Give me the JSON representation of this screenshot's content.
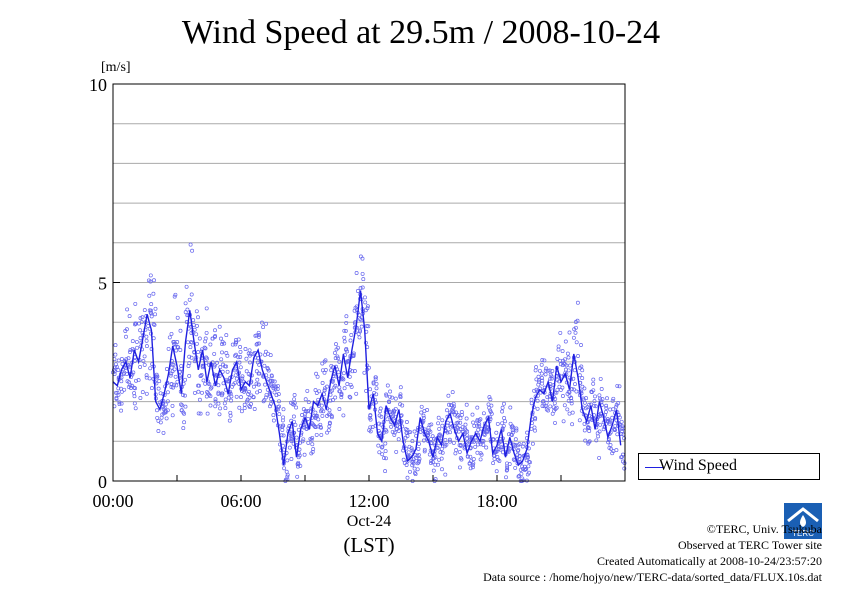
{
  "chart_data": {
    "type": "scatter",
    "title": "Wind Speed at 29.5m / 2008-10-24",
    "unit_label": "[m/s]",
    "y_range": [
      0,
      10
    ],
    "y_ticks": [
      {
        "value": 0,
        "label": "0"
      },
      {
        "value": 5,
        "label": "5"
      },
      {
        "value": 10,
        "label": "10"
      }
    ],
    "x_range_hours": [
      0,
      24
    ],
    "x_ticks": [
      {
        "hour": 0,
        "label": "00:00"
      },
      {
        "hour": 6,
        "label": "06:00"
      },
      {
        "hour": 12,
        "label": "12:00"
      },
      {
        "hour": 18,
        "label": "18:00"
      }
    ],
    "date_label": "Oct-24",
    "timezone_label": "(LST)",
    "grid_y": true,
    "legend_position": "right",
    "series": [
      {
        "name": "Wind Speed",
        "kind": "line-and-points",
        "line_color": "#2020e0",
        "point_color": "#6666ee",
        "x_hours": [
          0.0,
          0.2,
          0.4,
          0.6,
          0.8,
          1.0,
          1.2,
          1.4,
          1.6,
          1.8,
          2.0,
          2.2,
          2.4,
          2.6,
          2.8,
          3.0,
          3.2,
          3.4,
          3.6,
          3.8,
          4.0,
          4.2,
          4.4,
          4.6,
          4.8,
          5.0,
          5.2,
          5.4,
          5.6,
          5.8,
          6.0,
          6.2,
          6.4,
          6.6,
          6.8,
          7.0,
          7.2,
          7.4,
          7.6,
          7.8,
          8.0,
          8.2,
          8.4,
          8.6,
          8.8,
          9.0,
          9.2,
          9.4,
          9.6,
          9.8,
          10.0,
          10.2,
          10.4,
          10.6,
          10.8,
          11.0,
          11.2,
          11.4,
          11.6,
          11.8,
          12.0,
          12.2,
          12.4,
          12.6,
          12.8,
          13.0,
          13.2,
          13.4,
          13.6,
          13.8,
          14.0,
          14.2,
          14.4,
          14.6,
          14.8,
          15.0,
          15.2,
          15.4,
          15.6,
          15.8,
          16.0,
          16.2,
          16.4,
          16.6,
          16.8,
          17.0,
          17.2,
          17.4,
          17.6,
          17.8,
          18.0,
          18.2,
          18.4,
          18.6,
          18.8,
          19.0,
          19.2,
          19.4,
          19.6,
          19.8,
          20.0,
          20.2,
          20.4,
          20.6,
          20.8,
          21.0,
          21.2,
          21.4,
          21.6,
          21.8,
          22.0,
          22.2,
          22.4,
          22.6,
          22.8,
          23.0,
          23.2,
          23.4,
          23.6,
          23.8
        ],
        "values": [
          2.5,
          2.4,
          2.8,
          3.0,
          2.6,
          3.3,
          3.0,
          3.6,
          4.2,
          3.8,
          2.0,
          1.8,
          2.2,
          2.7,
          3.4,
          2.9,
          2.2,
          3.5,
          4.3,
          3.5,
          2.8,
          3.3,
          2.5,
          3.0,
          2.4,
          2.8,
          2.6,
          2.2,
          2.8,
          3.0,
          2.3,
          2.5,
          2.4,
          3.1,
          3.3,
          2.8,
          2.5,
          2.2,
          1.9,
          1.2,
          0.4,
          1.2,
          1.5,
          0.6,
          1.3,
          1.6,
          1.3,
          2.0,
          1.9,
          2.2,
          1.8,
          2.5,
          2.9,
          2.4,
          3.2,
          2.6,
          3.3,
          3.9,
          4.8,
          3.8,
          1.8,
          2.2,
          1.2,
          1.0,
          1.9,
          1.6,
          1.4,
          1.8,
          1.0,
          0.5,
          0.6,
          0.8,
          1.6,
          1.2,
          1.0,
          0.6,
          1.1,
          0.9,
          1.5,
          1.7,
          1.3,
          1.0,
          1.2,
          0.7,
          1.0,
          1.2,
          1.0,
          1.4,
          1.6,
          0.7,
          0.9,
          1.3,
          0.6,
          1.1,
          0.7,
          0.4,
          0.5,
          0.8,
          1.6,
          2.1,
          2.3,
          2.2,
          2.5,
          2.0,
          2.9,
          2.5,
          2.7,
          2.3,
          3.2,
          2.6,
          1.8,
          1.5,
          1.9,
          1.3,
          2.0,
          1.6,
          1.1,
          1.4,
          1.8,
          0.9
        ]
      }
    ]
  },
  "credits": {
    "copyright": "©TERC, Univ. Tsukuba",
    "observed": "Observed at TERC Tower site",
    "created": "Created Automatically at 2008-10-24/23:57:20",
    "source": "Data source : /home/hojyo/new/TERC-data/sorted_data/FLUX.10s.dat"
  },
  "logo": {
    "text": "TERC",
    "color": "#1a5fb4"
  }
}
